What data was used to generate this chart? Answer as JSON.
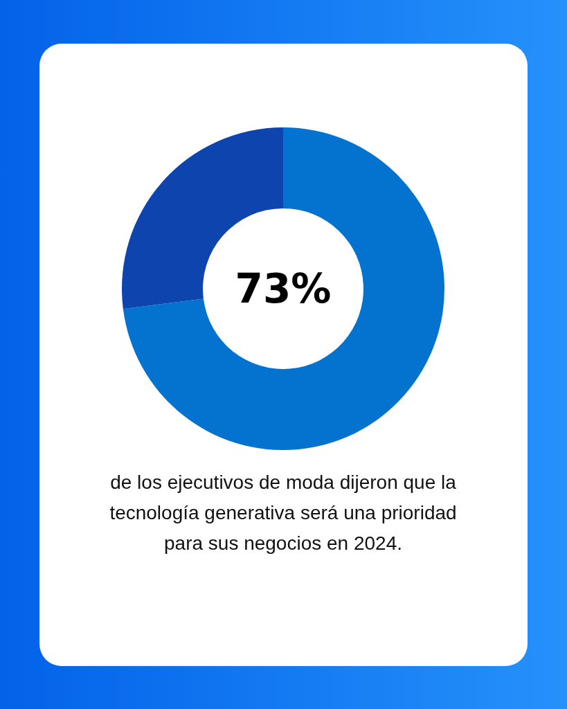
{
  "chart_data": {
    "type": "donut",
    "title": "73%",
    "categories": [
      null,
      null
    ],
    "values": [
      73,
      27
    ],
    "colors": [
      "#0373cf",
      "#0d44ad"
    ],
    "annotations": [
      "de los ejecutivos de moda dijeron que la tecnología generativa será una prioridad para sus negocios en 2024."
    ]
  }
}
